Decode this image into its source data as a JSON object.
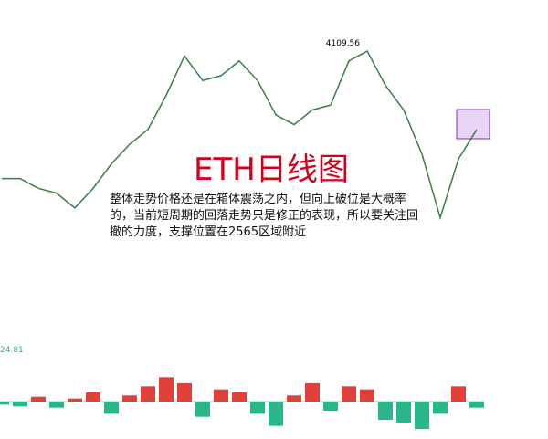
{
  "chart_data": [
    {
      "type": "line",
      "title": "ETH日线图",
      "annotation": "整体走势价格还是在箱体震荡之内，但向上破位是大概率的，当前短周期的回落走势只是修正的表现，所以要关注回撤的力度，支撑位置在2565区域附近",
      "peak_label": "4109.56",
      "color": "#c0392b",
      "categories": [
        null,
        null,
        null,
        null,
        null,
        null,
        null,
        null,
        null,
        null,
        null,
        null,
        null,
        null,
        null,
        null,
        null,
        null,
        null,
        null,
        null,
        null,
        null,
        null,
        null,
        null,
        null
      ],
      "values": [
        2738,
        2738,
        2640,
        2591,
        2444,
        2640,
        2885,
        3081,
        3228,
        3571,
        3963,
        3718,
        3767,
        3914,
        3718,
        3375,
        3277,
        3424,
        3473,
        3914,
        4012,
        3669,
        3424,
        2983,
        2346,
        2934,
        3228
      ],
      "ylim": [
        2150,
        4250
      ]
    },
    {
      "type": "bar",
      "label": "24.81",
      "categories": [
        null,
        null,
        null,
        null,
        null,
        null,
        null,
        null,
        null,
        null,
        null,
        null,
        null,
        null,
        null,
        null,
        null,
        null,
        null,
        null,
        null,
        null,
        null,
        null,
        null,
        null,
        null
      ],
      "values": [
        -5,
        -8,
        8,
        -10,
        5,
        15,
        -20,
        10,
        25,
        40,
        30,
        -25,
        20,
        15,
        -20,
        -40,
        10,
        30,
        -15,
        25,
        20,
        -30,
        -35,
        -45,
        -20,
        25,
        -10
      ],
      "ylim": [
        -60,
        60
      ]
    }
  ]
}
